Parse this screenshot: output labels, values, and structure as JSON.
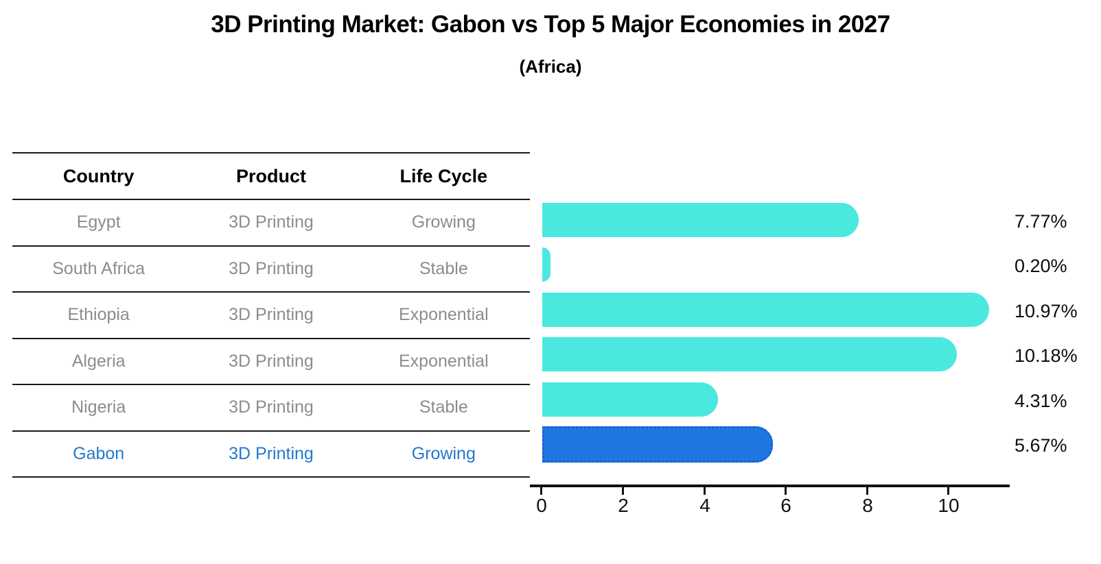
{
  "title": "3D Printing Market: Gabon vs Top 5 Major Economies in 2027",
  "subtitle": "(Africa)",
  "table": {
    "headers": {
      "country": "Country",
      "product": "Product",
      "life_cycle": "Life Cycle"
    },
    "rows": [
      {
        "country": "Egypt",
        "product": "3D Printing",
        "life_cycle": "Growing"
      },
      {
        "country": "South Africa",
        "product": "3D Printing",
        "life_cycle": "Stable"
      },
      {
        "country": "Ethiopia",
        "product": "3D Printing",
        "life_cycle": "Exponential"
      },
      {
        "country": "Algeria",
        "product": "3D Printing",
        "life_cycle": "Exponential"
      },
      {
        "country": "Nigeria",
        "product": "3D Printing",
        "life_cycle": "Stable"
      },
      {
        "country": "Gabon",
        "product": "3D Printing",
        "life_cycle": "Growing"
      }
    ]
  },
  "chart_data": {
    "type": "bar",
    "orientation": "horizontal",
    "title": "3D Printing Market: Gabon vs Top 5 Major Economies in 2027",
    "subtitle": "(Africa)",
    "categories": [
      "Egypt",
      "South Africa",
      "Ethiopia",
      "Algeria",
      "Nigeria",
      "Gabon"
    ],
    "values": [
      7.77,
      0.2,
      10.97,
      10.18,
      4.31,
      5.67
    ],
    "value_labels": [
      "7.77%",
      "0.20%",
      "10.97%",
      "10.18%",
      "4.31%",
      "5.67%"
    ],
    "xticks": [
      "0",
      "2",
      "4",
      "6",
      "8",
      "10"
    ],
    "xlim": [
      0,
      11.5
    ],
    "grid": false,
    "legend": false,
    "highlight_category": "Gabon",
    "colors": {
      "bar": "#4BE8E0",
      "highlight_bar": "#1E76E0",
      "highlight_border": "#1D5BD4",
      "highlight_text": "#2379CF",
      "row_text": "#8C8C8C",
      "header_text": "#000000",
      "axis": "#111111"
    }
  }
}
